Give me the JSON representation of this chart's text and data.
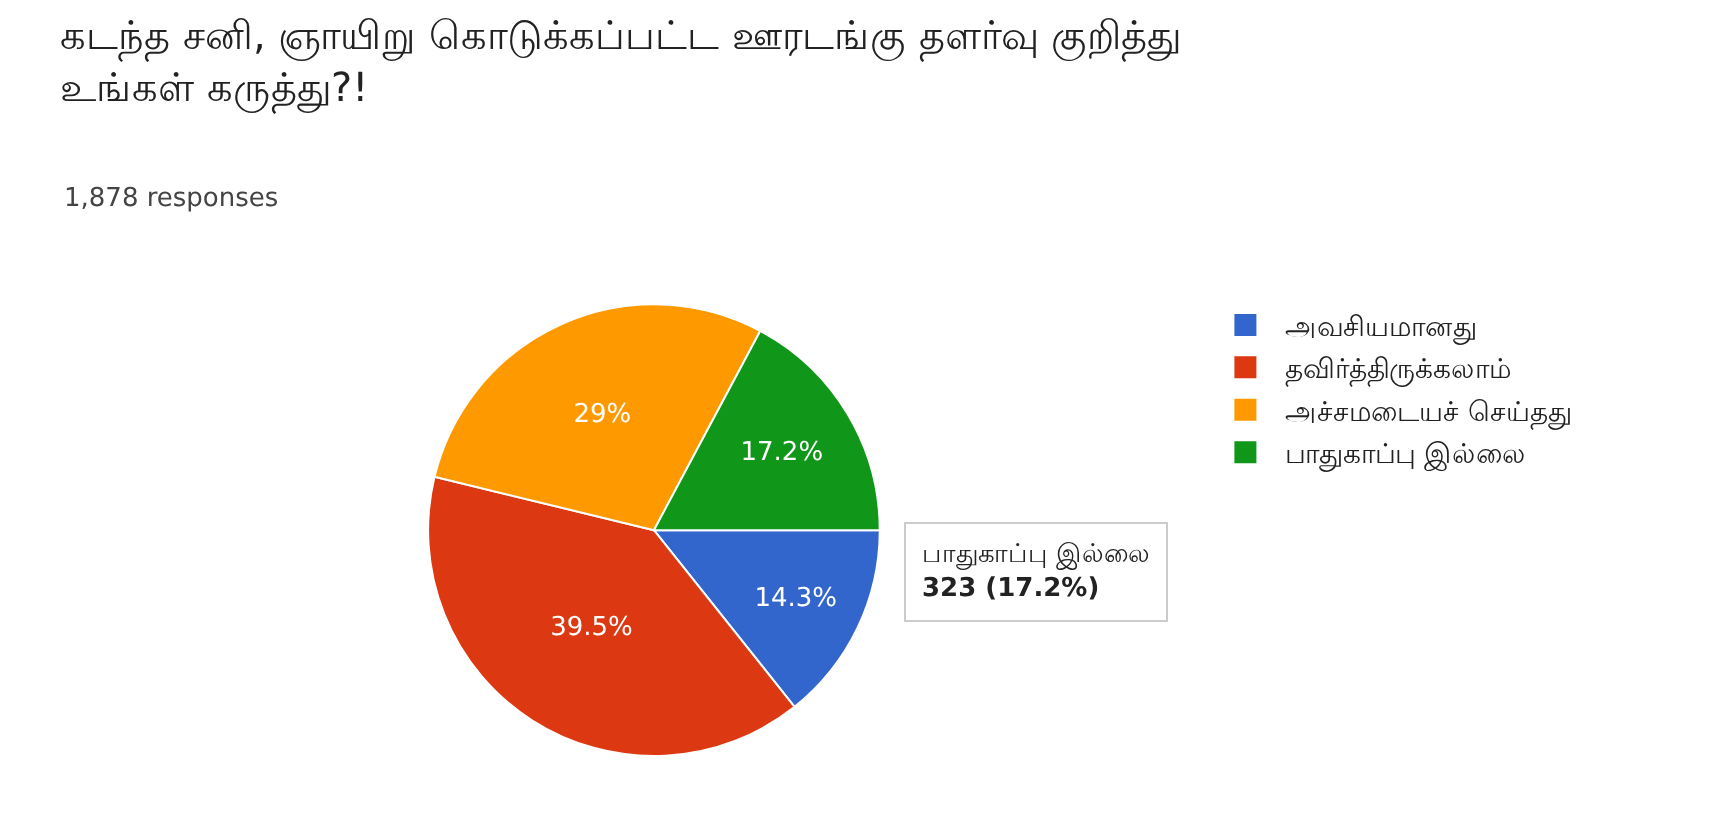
{
  "chart_data": {
    "type": "pie",
    "title": "கடந்த சனி, ஞாயிறு கொடுக்கப்பட்ட ஊரடங்கு தளர்வு குறித்து உங்கள் கருத்து?!",
    "subtitle": "1,878 responses",
    "categories": [
      "அவசியமானது",
      "தவிர்த்திருக்கலாம்",
      "அச்சமடையச் செய்தது",
      "பாதுகாப்பு இல்லை"
    ],
    "values": [
      14.3,
      39.5,
      29,
      17.2
    ],
    "value_labels": [
      "14.3%",
      "39.5%",
      "29%",
      "17.2%"
    ],
    "colors": [
      "#3366cc",
      "#dc3912",
      "#ff9900",
      "#109618"
    ],
    "legend": "top right",
    "annotations": [
      "பாதுகாப்பு இல்லை\n323 (17.2%)"
    ]
  }
}
